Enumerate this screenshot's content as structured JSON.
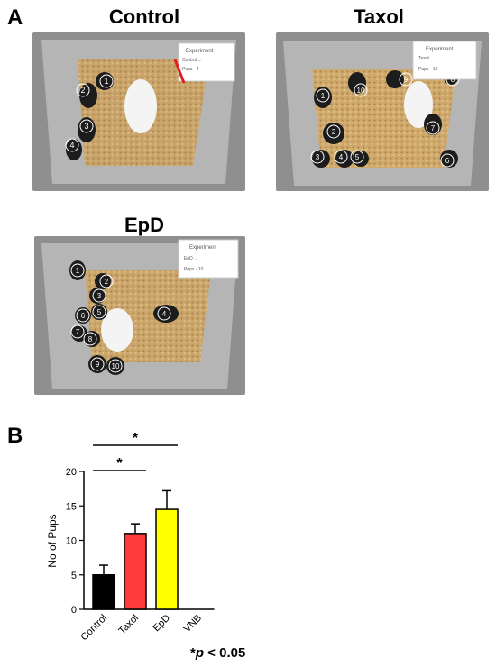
{
  "figure": {
    "panel_a_letter": "A",
    "panel_b_letter": "B",
    "photos": [
      {
        "title": "Control",
        "pup_labels": [
          "1",
          "2",
          "3",
          "4"
        ],
        "card_lines": [
          "Experiment",
          "Control ...",
          "Pups - 4"
        ]
      },
      {
        "title": "Taxol",
        "pup_labels": [
          "1",
          "2",
          "3",
          "4",
          "5",
          "6",
          "7",
          "8",
          "9",
          "10"
        ],
        "card_lines": [
          "Experiment",
          "Taxol ...",
          "Pups - 10"
        ]
      },
      {
        "title": "EpD",
        "pup_labels": [
          "1",
          "2",
          "3",
          "4",
          "5",
          "6",
          "7",
          "8",
          "9",
          "10"
        ],
        "card_lines": [
          "Experiment",
          "EpD ...",
          "Pups - 10"
        ]
      }
    ],
    "significance_marker": "*",
    "footnote_star": "*",
    "footnote_p": "p",
    "footnote_rest": " < 0.05"
  },
  "chart_data": {
    "type": "bar",
    "categories": [
      "Control",
      "Taxol",
      "EpD",
      "VNB"
    ],
    "values": [
      5.0,
      11.0,
      14.5,
      0
    ],
    "errors": [
      1.4,
      1.4,
      2.7,
      0
    ],
    "colors": [
      "#000000",
      "#ff3b3b",
      "#ffff00",
      "#ffffff"
    ],
    "ylabel": "No of Pups",
    "xlabel": "",
    "ylim": [
      0,
      20
    ],
    "yticks": [
      0,
      5,
      10,
      15,
      20
    ],
    "significance": [
      {
        "from": "Control",
        "to": "Taxol",
        "label": "*"
      },
      {
        "from": "Control",
        "to": "EpD",
        "label": "*"
      }
    ]
  }
}
